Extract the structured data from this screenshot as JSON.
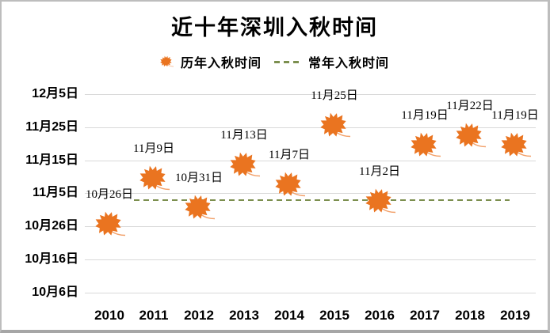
{
  "title": "近十年深圳入秋时间",
  "legend": {
    "series1": "历年入秋时间",
    "series2": "常年入秋时间"
  },
  "colors": {
    "leaf": "#EA7420",
    "leaf_stem": "#F2A16B",
    "reference_line": "#7C8F4F",
    "gridline": "#D9D9D9",
    "text": "#000000",
    "frame_border": "#BDBDBD"
  },
  "chart_data": {
    "type": "scatter",
    "title": "近十年深圳入秋时间",
    "categories": [
      "2010",
      "2011",
      "2012",
      "2013",
      "2014",
      "2015",
      "2016",
      "2017",
      "2018",
      "2019"
    ],
    "series": [
      {
        "name": "历年入秋时间",
        "marker": "maple-leaf",
        "labels": [
          "10月26日",
          "11月9日",
          "10月31日",
          "11月13日",
          "11月7日",
          "11月25日",
          "11月2日",
          "11月19日",
          "11月22日",
          "11月19日"
        ],
        "values_days_from_oct1": [
          26,
          40,
          31,
          44,
          38,
          56,
          33,
          50,
          53,
          50
        ]
      },
      {
        "name": "常年入秋时间",
        "style": "dashed-horizontal-line",
        "value_estimate_days_from_oct1": 34
      }
    ],
    "y_axis": {
      "tick_labels": [
        "10月6日",
        "10月16日",
        "10月26日",
        "11月5日",
        "11月15日",
        "11月25日",
        "12月5日"
      ],
      "tick_days_from_oct1": [
        6,
        16,
        26,
        36,
        46,
        56,
        66
      ]
    },
    "x_axis": {
      "tick_labels": [
        "2010",
        "2011",
        "2012",
        "2013",
        "2014",
        "2015",
        "2016",
        "2017",
        "2018",
        "2019"
      ]
    },
    "grid": true,
    "legend_position": "top"
  }
}
